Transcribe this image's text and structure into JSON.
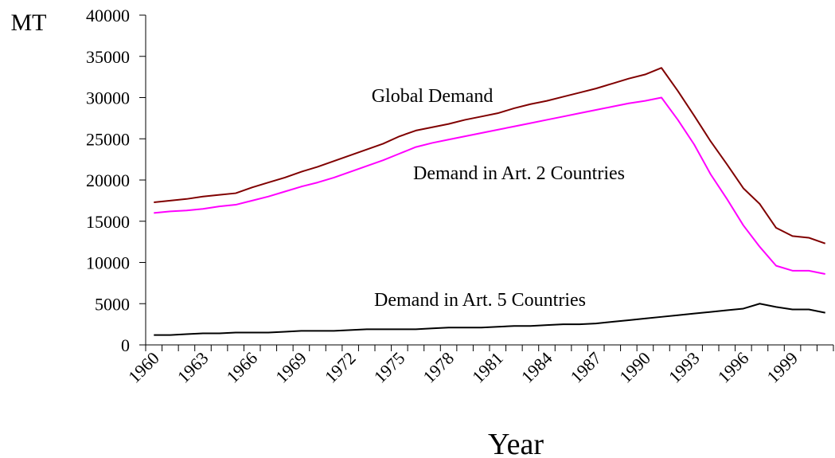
{
  "chart_data": {
    "type": "line",
    "ylabel": "MT",
    "xlabel": "Year",
    "annotations": [
      {
        "text": "Global Demand"
      },
      {
        "text": "Demand in Art. 2 Countries"
      },
      {
        "text": "Demand in Art. 5 Countries"
      }
    ],
    "x": [
      1960,
      1961,
      1962,
      1963,
      1964,
      1965,
      1966,
      1967,
      1968,
      1969,
      1970,
      1971,
      1972,
      1973,
      1974,
      1975,
      1976,
      1977,
      1978,
      1979,
      1980,
      1981,
      1982,
      1983,
      1984,
      1985,
      1986,
      1987,
      1988,
      1989,
      1990,
      1991,
      1992,
      1993,
      1994,
      1995,
      1996,
      1997,
      1998,
      1999,
      2000,
      2001
    ],
    "xlim": [
      1959.5,
      2001.5
    ],
    "xticks": [
      1960,
      1963,
      1966,
      1969,
      1972,
      1975,
      1978,
      1981,
      1984,
      1987,
      1990,
      1993,
      1996,
      1999
    ],
    "ylim": [
      0,
      40000
    ],
    "yticks": [
      0,
      5000,
      10000,
      15000,
      20000,
      25000,
      30000,
      35000,
      40000
    ],
    "series": [
      {
        "name": "Global Demand",
        "color": "#800000",
        "values": [
          17300,
          17500,
          17700,
          18000,
          18200,
          18400,
          19100,
          19700,
          20300,
          21000,
          21600,
          22300,
          23000,
          23700,
          24400,
          25300,
          26000,
          26400,
          26800,
          27300,
          27700,
          28100,
          28700,
          29200,
          29600,
          30100,
          30600,
          31100,
          31700,
          32300,
          32800,
          33600,
          30800,
          27800,
          24700,
          21900,
          19000,
          17100,
          14200,
          13200,
          13000,
          12300
        ]
      },
      {
        "name": "Demand in Art. 2 Countries",
        "color": "#ff00ff",
        "values": [
          16000,
          16200,
          16300,
          16500,
          16800,
          17000,
          17500,
          18000,
          18600,
          19200,
          19700,
          20300,
          21000,
          21700,
          22400,
          23200,
          24000,
          24500,
          24900,
          25300,
          25700,
          26100,
          26500,
          26900,
          27300,
          27700,
          28100,
          28500,
          28900,
          29300,
          29600,
          30000,
          27300,
          24300,
          20700,
          17700,
          14500,
          11900,
          9600,
          9000,
          9000,
          8600
        ]
      },
      {
        "name": "Demand in Art. 5 Countries",
        "color": "#000000",
        "values": [
          1200,
          1200,
          1300,
          1400,
          1400,
          1500,
          1500,
          1500,
          1600,
          1700,
          1700,
          1700,
          1800,
          1900,
          1900,
          1900,
          1900,
          2000,
          2100,
          2100,
          2100,
          2200,
          2300,
          2300,
          2400,
          2500,
          2500,
          2600,
          2800,
          3000,
          3200,
          3400,
          3600,
          3800,
          4000,
          4200,
          4400,
          5000,
          4600,
          4300,
          4300,
          3900
        ]
      }
    ]
  }
}
